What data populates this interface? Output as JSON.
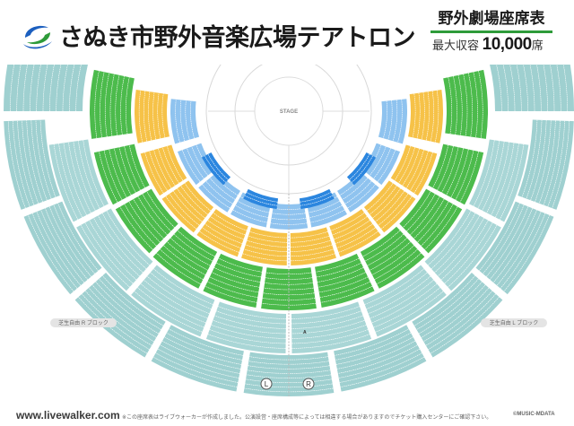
{
  "header": {
    "title": "さぬき市野外音楽広場テアトロン",
    "subtitle": "野外劇場座席表",
    "capacity_label": "最大収容",
    "capacity_value": "10,000",
    "capacity_unit": "席"
  },
  "map": {
    "stage_label": "STAGE",
    "lawn_right_label": "芝生自由 R ブロック",
    "lawn_left_label": "芝生自由 L ブロック",
    "gate_left": "L",
    "gate_right": "R",
    "center_row_marker": "A"
  },
  "colors": {
    "lawn": "#a9d6d6",
    "green": "#4cbb4c",
    "yellow": "#f6c248",
    "lightblue": "#8fc3ef",
    "blue": "#2b86df",
    "teal_outer": "#9fd0d0",
    "brand_green": "#2e9b3a",
    "brand_blue": "#1c5fbf"
  },
  "footer": {
    "url": "www.livewalker.com",
    "disclaimer": "※この座席表はライブウォーカーが作成しました。公演設営・座席構成等によっては相違する場合がありますのでチケット購入センターにご確認下さい。",
    "credit": "©MUSIC-MDATA"
  }
}
